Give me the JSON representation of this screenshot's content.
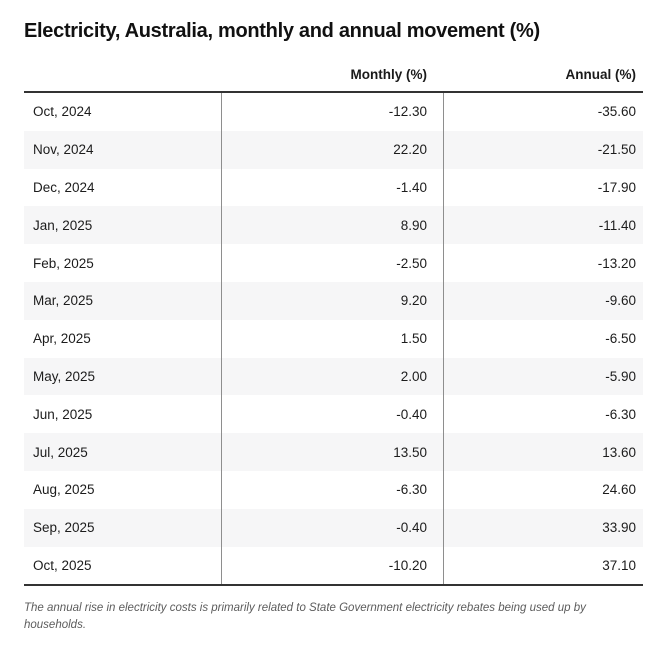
{
  "title": "Electricity, Australia, monthly and annual movement (%)",
  "table": {
    "columns": [
      "",
      "Monthly (%)",
      "Annual (%)"
    ],
    "rows": [
      {
        "period": "Oct, 2024",
        "monthly": "-12.30",
        "annual": "-35.60"
      },
      {
        "period": "Nov, 2024",
        "monthly": "22.20",
        "annual": "-21.50"
      },
      {
        "period": "Dec, 2024",
        "monthly": "-1.40",
        "annual": "-17.90"
      },
      {
        "period": "Jan, 2025",
        "monthly": "8.90",
        "annual": "-11.40"
      },
      {
        "period": "Feb, 2025",
        "monthly": "-2.50",
        "annual": "-13.20"
      },
      {
        "period": "Mar, 2025",
        "monthly": "9.20",
        "annual": "-9.60"
      },
      {
        "period": "Apr, 2025",
        "monthly": "1.50",
        "annual": "-6.50"
      },
      {
        "period": "May, 2025",
        "monthly": "2.00",
        "annual": "-5.90"
      },
      {
        "period": "Jun, 2025",
        "monthly": "-0.40",
        "annual": "-6.30"
      },
      {
        "period": "Jul, 2025",
        "monthly": "13.50",
        "annual": "13.60"
      },
      {
        "period": "Aug, 2025",
        "monthly": "-6.30",
        "annual": "24.60"
      },
      {
        "period": "Sep, 2025",
        "monthly": "-0.40",
        "annual": "33.90"
      },
      {
        "period": "Oct, 2025",
        "monthly": "-10.20",
        "annual": "37.10"
      }
    ]
  },
  "footnote": "The annual rise in electricity costs is primarily related to State Government electricity rebates being used up by households.",
  "colors": {
    "background": "#ffffff",
    "stripe": "#f6f6f7",
    "heavy_border": "#333333",
    "column_divider": "#8e8e8e",
    "text": "#1c1c1c",
    "footnote_text": "#5c5c5c"
  },
  "chart_data": {
    "type": "table",
    "title": "Electricity, Australia, monthly and annual movement (%)",
    "categories": [
      "Oct, 2024",
      "Nov, 2024",
      "Dec, 2024",
      "Jan, 2025",
      "Feb, 2025",
      "Mar, 2025",
      "Apr, 2025",
      "May, 2025",
      "Jun, 2025",
      "Jul, 2025",
      "Aug, 2025",
      "Sep, 2025",
      "Oct, 2025"
    ],
    "series": [
      {
        "name": "Monthly (%)",
        "values": [
          -12.3,
          22.2,
          -1.4,
          8.9,
          -2.5,
          9.2,
          1.5,
          2.0,
          -0.4,
          13.5,
          -6.3,
          -0.4,
          -10.2
        ]
      },
      {
        "name": "Annual (%)",
        "values": [
          -35.6,
          -21.5,
          -17.9,
          -11.4,
          -13.2,
          -9.6,
          -6.5,
          -5.9,
          -6.3,
          13.6,
          24.6,
          33.9,
          37.1
        ]
      }
    ],
    "annotation": "The annual rise in electricity costs is primarily related to State Government electricity rebates being used up by households.",
    "layout": {
      "zebra_striping": true,
      "value_alignment": "right",
      "grid": "column dividers + heavy top/bottom rules"
    }
  }
}
